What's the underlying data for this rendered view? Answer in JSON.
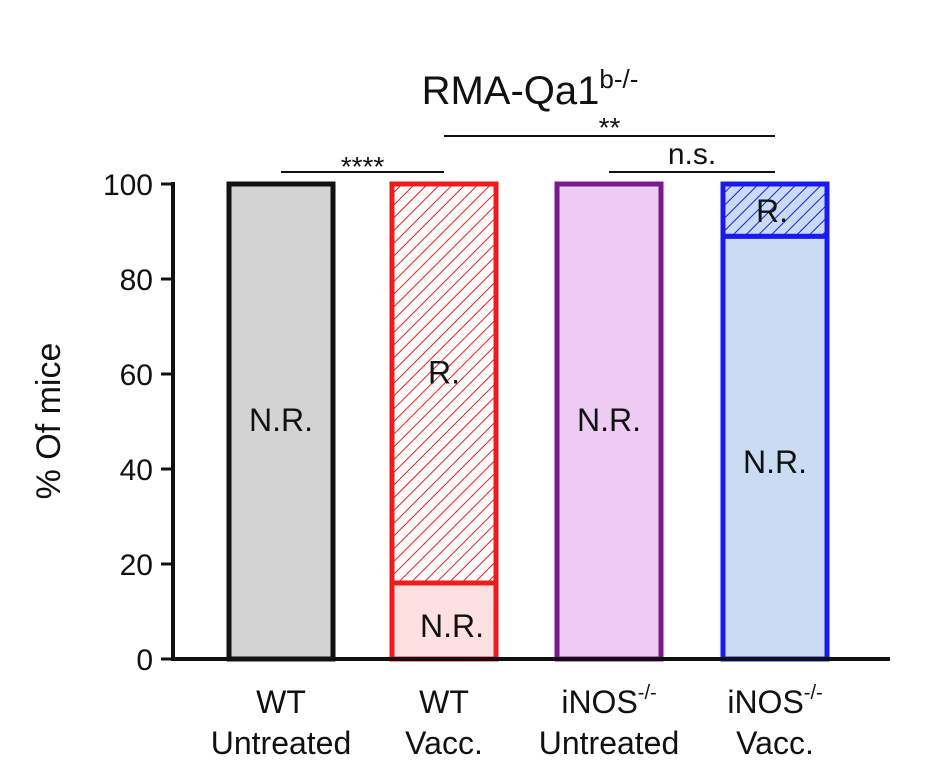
{
  "chart_data": {
    "type": "bar",
    "stacked": true,
    "title": "RMA-Qa1",
    "title_superscript": "b-/-",
    "ylabel": "% Of mice",
    "ylim": [
      0,
      100
    ],
    "yticks": [
      0,
      20,
      40,
      60,
      80,
      100
    ],
    "categories": [
      {
        "line1": "WT",
        "line1_sup": "",
        "line2": "Untreated"
      },
      {
        "line1": "WT",
        "line1_sup": "",
        "line2": "Vacc."
      },
      {
        "line1": "iNOS",
        "line1_sup": "-/-",
        "line2": "Untreated"
      },
      {
        "line1": "iNOS",
        "line1_sup": "-/-",
        "line2": "Vacc."
      }
    ],
    "bars": [
      {
        "segments": [
          {
            "label": "N.R.",
            "value": 100,
            "fill": "#d3d3d3",
            "stroke": "#111111",
            "hatched": false
          }
        ]
      },
      {
        "segments": [
          {
            "label": "N.R.",
            "value": 16,
            "fill": "#fde0e0",
            "stroke": "#ee1c1c",
            "hatched": false
          },
          {
            "label": "R.",
            "value": 84,
            "fill": "#ffffff",
            "stroke": "#ee1c1c",
            "hatched": true
          }
        ]
      },
      {
        "segments": [
          {
            "label": "N.R.",
            "value": 100,
            "fill": "#ecccf2",
            "stroke": "#7b1a8c",
            "hatched": false
          }
        ]
      },
      {
        "segments": [
          {
            "label": "N.R.",
            "value": 89,
            "fill": "#c9dcf3",
            "stroke": "#1a1aee",
            "hatched": false
          },
          {
            "label": "R.",
            "value": 11,
            "fill": "#c9dcf3",
            "stroke": "#1a1aee",
            "hatched": true
          }
        ]
      }
    ],
    "significance": [
      {
        "from": 0,
        "to": 1,
        "label": "****"
      },
      {
        "from": 1,
        "to": 3,
        "label": "**"
      },
      {
        "from": 2,
        "to": 3,
        "label": "n.s."
      }
    ]
  }
}
